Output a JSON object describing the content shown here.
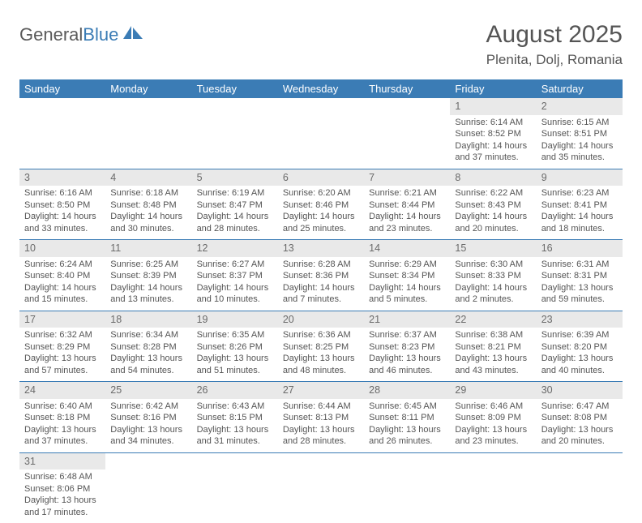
{
  "logo": {
    "text1": "General",
    "text2": "Blue"
  },
  "title": "August 2025",
  "location": "Plenita, Dolj, Romania",
  "colors": {
    "header_bg": "#3b7cb5",
    "header_fg": "#ffffff",
    "daynum_bg": "#e9e9e9",
    "text": "#555555",
    "page_bg": "#ffffff",
    "row_border": "#3b7cb5"
  },
  "day_headers": [
    "Sunday",
    "Monday",
    "Tuesday",
    "Wednesday",
    "Thursday",
    "Friday",
    "Saturday"
  ],
  "labels": {
    "sunrise": "Sunrise:",
    "sunset": "Sunset:",
    "daylight": "Daylight:"
  },
  "weeks": [
    [
      null,
      null,
      null,
      null,
      null,
      {
        "n": "1",
        "sr": "6:14 AM",
        "ss": "8:52 PM",
        "dl": "14 hours and 37 minutes."
      },
      {
        "n": "2",
        "sr": "6:15 AM",
        "ss": "8:51 PM",
        "dl": "14 hours and 35 minutes."
      }
    ],
    [
      {
        "n": "3",
        "sr": "6:16 AM",
        "ss": "8:50 PM",
        "dl": "14 hours and 33 minutes."
      },
      {
        "n": "4",
        "sr": "6:18 AM",
        "ss": "8:48 PM",
        "dl": "14 hours and 30 minutes."
      },
      {
        "n": "5",
        "sr": "6:19 AM",
        "ss": "8:47 PM",
        "dl": "14 hours and 28 minutes."
      },
      {
        "n": "6",
        "sr": "6:20 AM",
        "ss": "8:46 PM",
        "dl": "14 hours and 25 minutes."
      },
      {
        "n": "7",
        "sr": "6:21 AM",
        "ss": "8:44 PM",
        "dl": "14 hours and 23 minutes."
      },
      {
        "n": "8",
        "sr": "6:22 AM",
        "ss": "8:43 PM",
        "dl": "14 hours and 20 minutes."
      },
      {
        "n": "9",
        "sr": "6:23 AM",
        "ss": "8:41 PM",
        "dl": "14 hours and 18 minutes."
      }
    ],
    [
      {
        "n": "10",
        "sr": "6:24 AM",
        "ss": "8:40 PM",
        "dl": "14 hours and 15 minutes."
      },
      {
        "n": "11",
        "sr": "6:25 AM",
        "ss": "8:39 PM",
        "dl": "14 hours and 13 minutes."
      },
      {
        "n": "12",
        "sr": "6:27 AM",
        "ss": "8:37 PM",
        "dl": "14 hours and 10 minutes."
      },
      {
        "n": "13",
        "sr": "6:28 AM",
        "ss": "8:36 PM",
        "dl": "14 hours and 7 minutes."
      },
      {
        "n": "14",
        "sr": "6:29 AM",
        "ss": "8:34 PM",
        "dl": "14 hours and 5 minutes."
      },
      {
        "n": "15",
        "sr": "6:30 AM",
        "ss": "8:33 PM",
        "dl": "14 hours and 2 minutes."
      },
      {
        "n": "16",
        "sr": "6:31 AM",
        "ss": "8:31 PM",
        "dl": "13 hours and 59 minutes."
      }
    ],
    [
      {
        "n": "17",
        "sr": "6:32 AM",
        "ss": "8:29 PM",
        "dl": "13 hours and 57 minutes."
      },
      {
        "n": "18",
        "sr": "6:34 AM",
        "ss": "8:28 PM",
        "dl": "13 hours and 54 minutes."
      },
      {
        "n": "19",
        "sr": "6:35 AM",
        "ss": "8:26 PM",
        "dl": "13 hours and 51 minutes."
      },
      {
        "n": "20",
        "sr": "6:36 AM",
        "ss": "8:25 PM",
        "dl": "13 hours and 48 minutes."
      },
      {
        "n": "21",
        "sr": "6:37 AM",
        "ss": "8:23 PM",
        "dl": "13 hours and 46 minutes."
      },
      {
        "n": "22",
        "sr": "6:38 AM",
        "ss": "8:21 PM",
        "dl": "13 hours and 43 minutes."
      },
      {
        "n": "23",
        "sr": "6:39 AM",
        "ss": "8:20 PM",
        "dl": "13 hours and 40 minutes."
      }
    ],
    [
      {
        "n": "24",
        "sr": "6:40 AM",
        "ss": "8:18 PM",
        "dl": "13 hours and 37 minutes."
      },
      {
        "n": "25",
        "sr": "6:42 AM",
        "ss": "8:16 PM",
        "dl": "13 hours and 34 minutes."
      },
      {
        "n": "26",
        "sr": "6:43 AM",
        "ss": "8:15 PM",
        "dl": "13 hours and 31 minutes."
      },
      {
        "n": "27",
        "sr": "6:44 AM",
        "ss": "8:13 PM",
        "dl": "13 hours and 28 minutes."
      },
      {
        "n": "28",
        "sr": "6:45 AM",
        "ss": "8:11 PM",
        "dl": "13 hours and 26 minutes."
      },
      {
        "n": "29",
        "sr": "6:46 AM",
        "ss": "8:09 PM",
        "dl": "13 hours and 23 minutes."
      },
      {
        "n": "30",
        "sr": "6:47 AM",
        "ss": "8:08 PM",
        "dl": "13 hours and 20 minutes."
      }
    ],
    [
      {
        "n": "31",
        "sr": "6:48 AM",
        "ss": "8:06 PM",
        "dl": "13 hours and 17 minutes."
      },
      null,
      null,
      null,
      null,
      null,
      null
    ]
  ]
}
